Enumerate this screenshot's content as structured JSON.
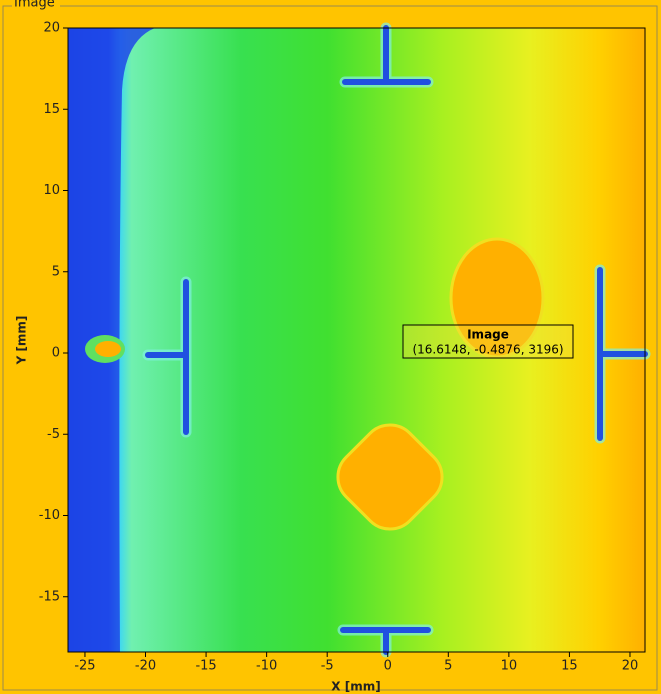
{
  "chart_data": {
    "type": "image",
    "title": "Image",
    "xlabel": "X [mm]",
    "ylabel": "Y [mm]",
    "xlim": [
      -26.4,
      21.24
    ],
    "ylim": [
      -18.4,
      20
    ],
    "xticks": [
      -25,
      -20,
      -15,
      -10,
      -5,
      0,
      5,
      10,
      15,
      20
    ],
    "yticks": [
      -15,
      -10,
      -5,
      0,
      5,
      10,
      15,
      20
    ],
    "annotation": {
      "title": "Image",
      "text": "(16.6148, -0.4876, 3196)"
    }
  }
}
